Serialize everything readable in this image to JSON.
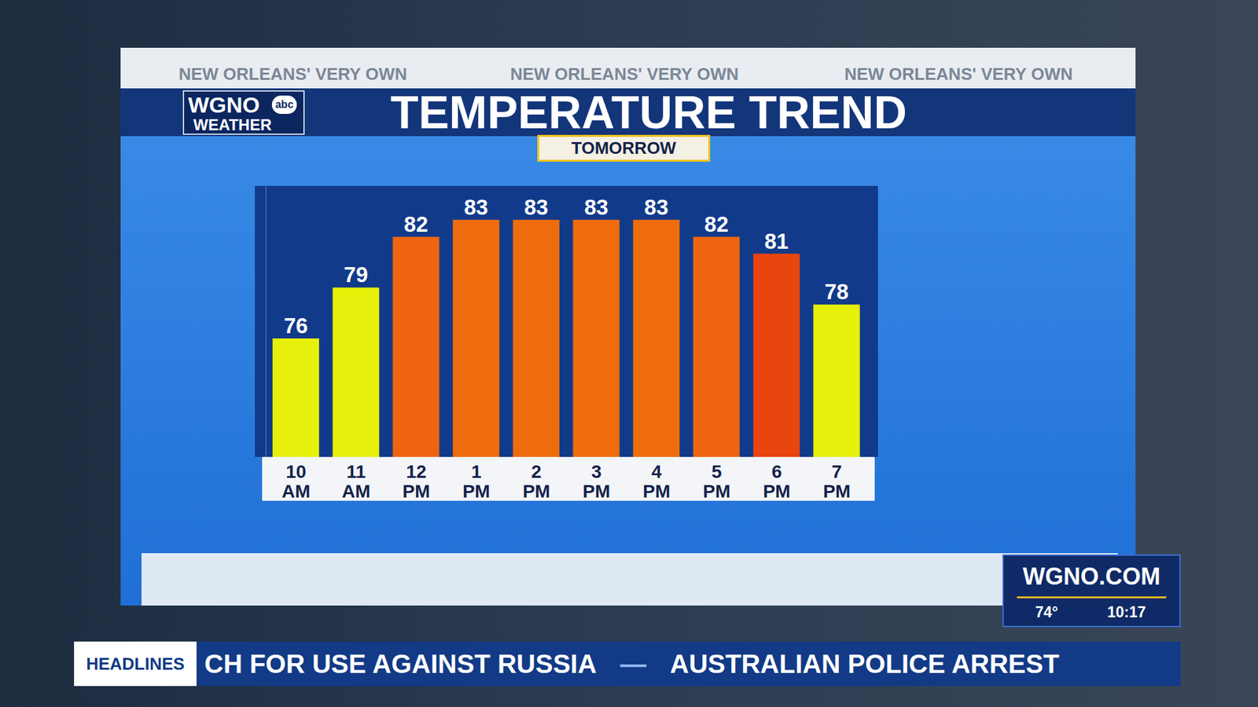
{
  "chart_data": {
    "type": "bar",
    "title": "TEMPERATURE TREND",
    "subtitle": "TOMORROW",
    "categories": [
      "10 AM",
      "11 AM",
      "12 PM",
      "1 PM",
      "2 PM",
      "3 PM",
      "4 PM",
      "5 PM",
      "6 PM",
      "7 PM"
    ],
    "values": [
      76,
      79,
      82,
      83,
      83,
      83,
      83,
      82,
      81,
      78
    ],
    "colors": [
      "#e6f00a",
      "#e6f00a",
      "#ee6410",
      "#ef6c0c",
      "#ef6c0c",
      "#ef6c0c",
      "#ef6c0c",
      "#ee6410",
      "#e8450f",
      "#e6f00a"
    ],
    "ylim": [
      69,
      85
    ],
    "tick_labels": "x",
    "data_labels": true,
    "grid": false
  },
  "header": {
    "tagline": [
      "NEW ORLEANS' VERY OWN",
      "NEW ORLEANS' VERY OWN",
      "NEW ORLEANS' VERY OWN"
    ],
    "logo": {
      "name": "WGNO",
      "network": "abc",
      "label": "WEATHER"
    }
  },
  "bug": {
    "site": "WGNO.COM",
    "temperature": "74°",
    "time": "10:17"
  },
  "ticker": {
    "label": "HEADLINES",
    "items": [
      "CH FOR USE AGAINST RUSSIA",
      "AUSTRALIAN POLICE ARREST"
    ],
    "separator": "—"
  }
}
